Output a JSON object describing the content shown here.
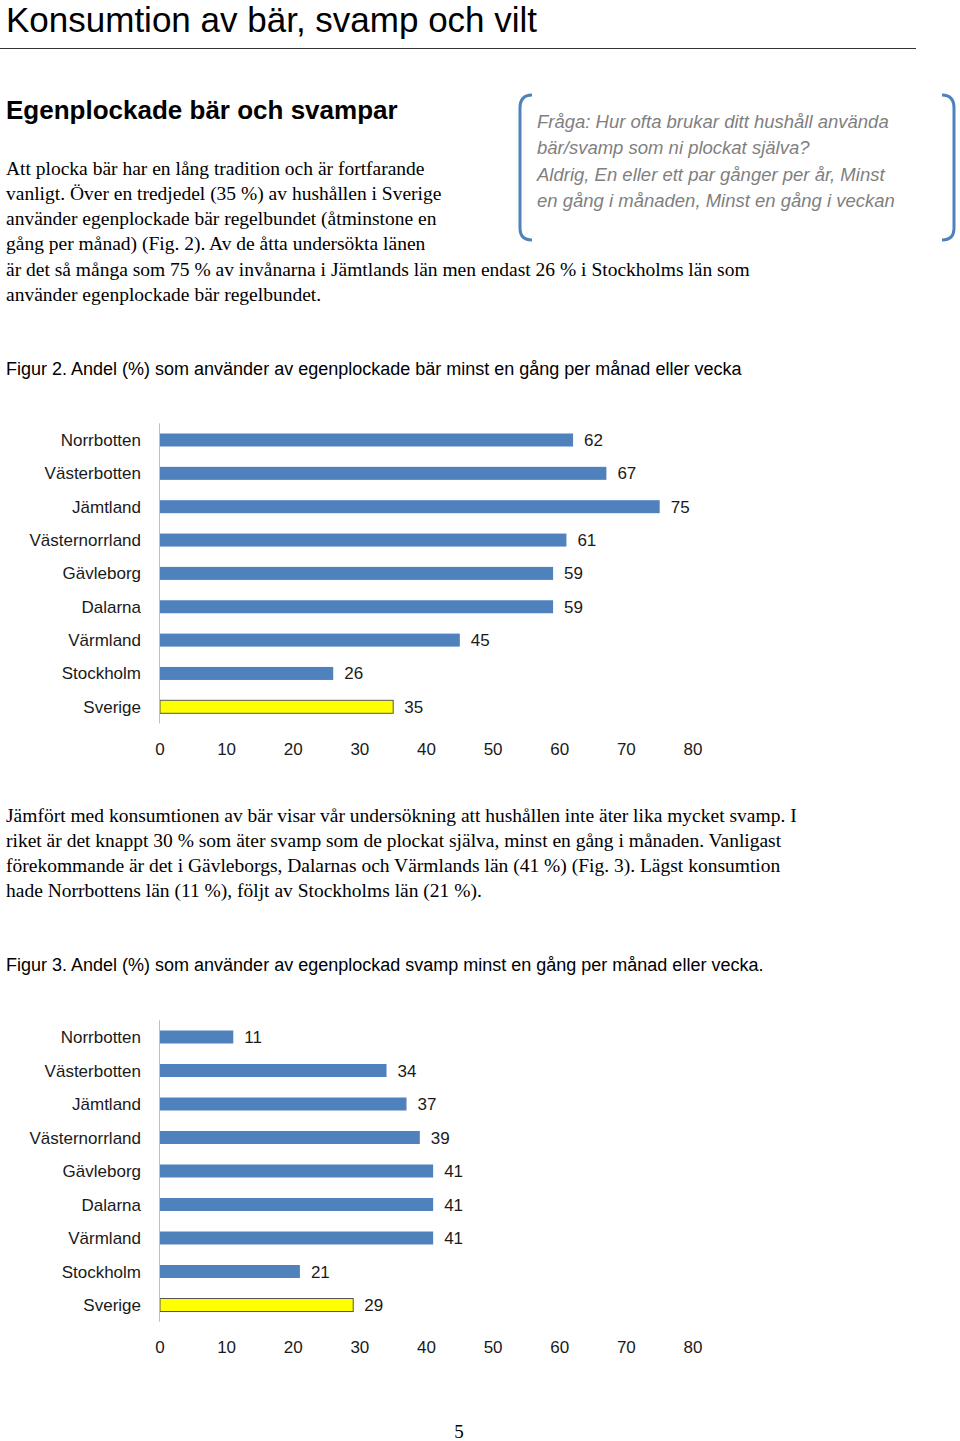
{
  "header": {
    "title": "Konsumtion av bär, svamp och vilt"
  },
  "section": {
    "heading": "Egenplockade bär och svampar"
  },
  "question_box": {
    "lines": [
      "Fråga: Hur ofta brukar ditt hushåll använda",
      "bär/svamp som ni plockat själva?",
      "Aldrig, En eller ett par gånger per år, Minst",
      "en gång i månaden, Minst en gång i veckan"
    ]
  },
  "paragraphs": [
    {
      "lines": [
        "Att plocka bär har en lång tradition och är fortfarande",
        "vanligt. Över en tredjedel (35 %) av hushållen i Sverige",
        "använder egenplockade bär regelbundet (åtminstone en",
        "gång per månad) (Fig. 2). Av de åtta undersökta länen",
        "är det så många som 75 % av invånarna i Jämtlands län men endast 26 % i Stockholms län som",
        "använder egenplockade bär regelbundet."
      ]
    },
    {
      "lines": [
        "Jämfört med konsumtionen av bär visar vår undersökning att hushållen inte äter lika mycket svamp. I",
        "riket är det knappt 30 % som äter svamp som de plockat själva, minst en gång i månaden. Vanligast",
        "förekommande är det i Gävleborgs, Dalarnas och Värmlands län (41 %) (Fig. 3). Lägst konsumtion",
        "hade Norrbottens län (11 %), följt av Stockholms län (21 %)."
      ]
    }
  ],
  "chart_data": [
    {
      "type": "bar",
      "orientation": "horizontal",
      "data_labels": true,
      "title": "Figur 2. Andel (%) som använder av egenplockade bär minst en gång per månad eller vecka",
      "categories": [
        "Norrbotten",
        "Västerbotten",
        "Jämtland",
        "Västernorrland",
        "Gävleborg",
        "Dalarna",
        "Värmland",
        "Stockholm",
        "Sverige"
      ],
      "values": [
        62,
        67,
        75,
        61,
        59,
        59,
        45,
        26,
        35
      ],
      "colors": [
        "#4f81bd",
        "#4f81bd",
        "#4f81bd",
        "#4f81bd",
        "#4f81bd",
        "#4f81bd",
        "#4f81bd",
        "#4f81bd",
        "#ffff00"
      ],
      "xlim": [
        0,
        80
      ],
      "xticks": [
        0,
        10,
        20,
        30,
        40,
        50,
        60,
        70,
        80
      ],
      "grid": false
    },
    {
      "type": "bar",
      "orientation": "horizontal",
      "data_labels": true,
      "title": "Figur 3. Andel (%) som använder av egenplockad svamp minst en gång per månad eller vecka.",
      "categories": [
        "Norrbotten",
        "Västerbotten",
        "Jämtland",
        "Västernorrland",
        "Gävleborg",
        "Dalarna",
        "Värmland",
        "Stockholm",
        "Sverige"
      ],
      "values": [
        11,
        34,
        37,
        39,
        41,
        41,
        41,
        21,
        29
      ],
      "colors": [
        "#4f81bd",
        "#4f81bd",
        "#4f81bd",
        "#4f81bd",
        "#4f81bd",
        "#4f81bd",
        "#4f81bd",
        "#4f81bd",
        "#ffff00"
      ],
      "xlim": [
        0,
        80
      ],
      "xticks": [
        0,
        10,
        20,
        30,
        40,
        50,
        60,
        70,
        80
      ],
      "grid": false
    }
  ],
  "page_number": "5"
}
